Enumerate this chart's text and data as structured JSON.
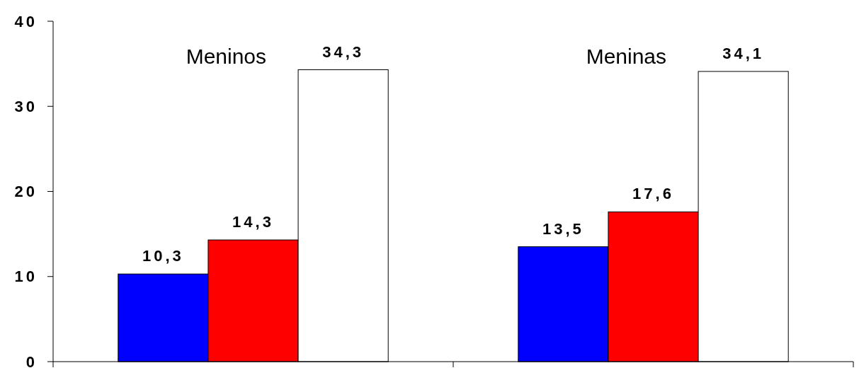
{
  "chart_data": {
    "type": "bar",
    "categories": [
      "Meninos",
      "Meninas"
    ],
    "series": [
      {
        "color": "#0000ff",
        "values": [
          10.3,
          13.5
        ],
        "value_labels": [
          "10,3",
          "13,5"
        ]
      },
      {
        "color": "#ff0000",
        "values": [
          14.3,
          17.6
        ],
        "value_labels": [
          "14,3",
          "17,6"
        ]
      },
      {
        "color": "#ffffff",
        "values": [
          34.3,
          34.1
        ],
        "value_labels": [
          "34,3",
          "34,1"
        ]
      }
    ],
    "ylim": [
      0,
      40
    ],
    "yticks": [
      0,
      10,
      20,
      30,
      40
    ],
    "grid": false
  }
}
